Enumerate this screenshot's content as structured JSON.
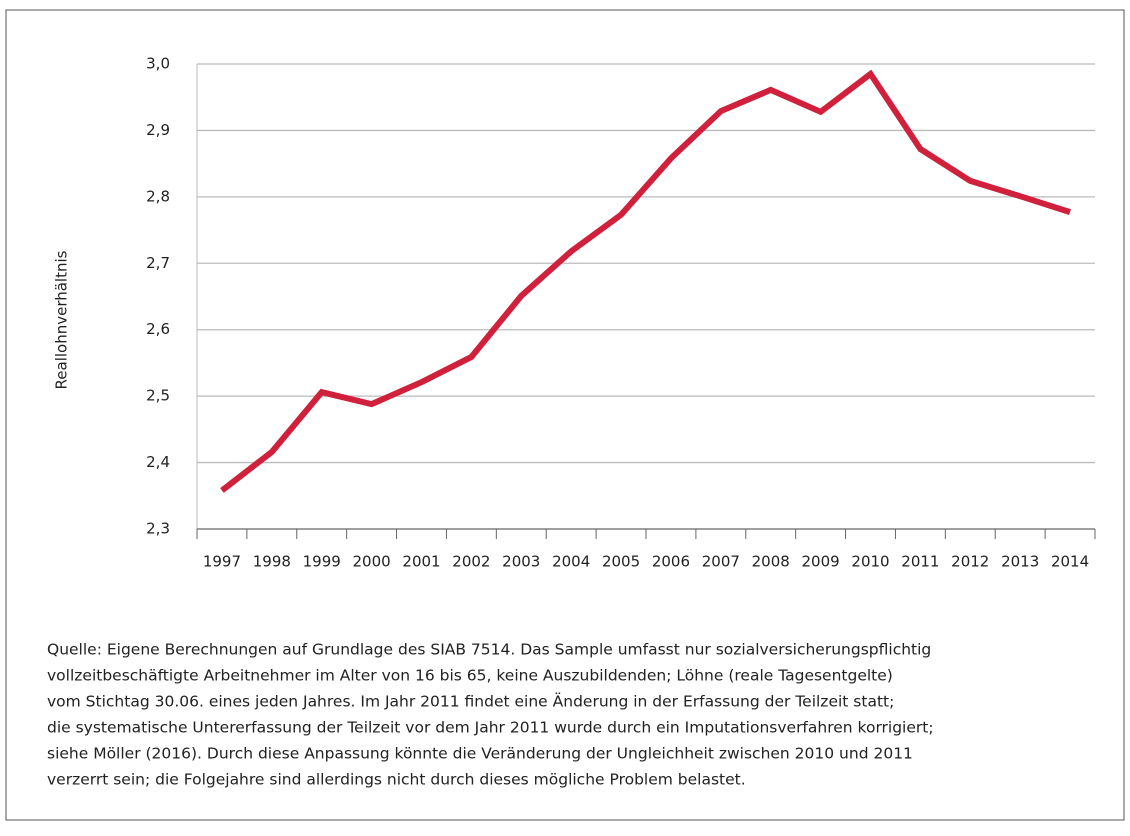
{
  "chart_data": {
    "type": "line",
    "y_label": "Reallohnverhältnis",
    "categories": [
      "1997",
      "1998",
      "1999",
      "2000",
      "2001",
      "2002",
      "2003",
      "2004",
      "2005",
      "2006",
      "2007",
      "2008",
      "2009",
      "2010",
      "2011",
      "2012",
      "2013",
      "2014"
    ],
    "series": [
      {
        "color": "#d0203b",
        "values": [
          2.358,
          2.416,
          2.506,
          2.488,
          2.521,
          2.559,
          2.651,
          2.718,
          2.773,
          2.858,
          2.929,
          2.961,
          2.928,
          2.985,
          2.872,
          2.824,
          2.801,
          2.777
        ]
      }
    ],
    "ylim": [
      2.3,
      3.0
    ],
    "yticks": [
      {
        "value": 2.3,
        "label": "2,3"
      },
      {
        "value": 2.4,
        "label": "2,4"
      },
      {
        "value": 2.5,
        "label": "2,5"
      },
      {
        "value": 2.6,
        "label": "2,6"
      },
      {
        "value": 2.7,
        "label": "2,7"
      },
      {
        "value": 2.8,
        "label": "2,8"
      },
      {
        "value": 2.9,
        "label": "2,9"
      },
      {
        "value": 3.0,
        "label": "3,0"
      }
    ],
    "grid": true,
    "note": [
      "Quelle: Eigene Berechnungen auf Grundlage des SIAB 7514. Das Sample umfasst nur sozialversicherungspflichtig",
      "vollzeitbeschäftigte Arbeitnehmer im Alter von 16 bis 65, keine Auszubildenden; Löhne (reale Tagesentgelte)",
      "vom Stichtag 30.06. eines jeden Jahres. Im Jahr 2011 findet eine Änderung in der Erfassung der Teilzeit statt;",
      "die systematische Untererfassung der Teilzeit vor dem Jahr 2011 wurde durch ein Imputationsverfahren korrigiert;",
      "siehe Möller (2016). Durch diese Anpassung könnte die Veränderung der Ungleichheit zwischen 2010 und 2011",
      "verzerrt sein; die Folgejahre sind allerdings nicht durch dieses mögliche Problem belastet."
    ]
  }
}
